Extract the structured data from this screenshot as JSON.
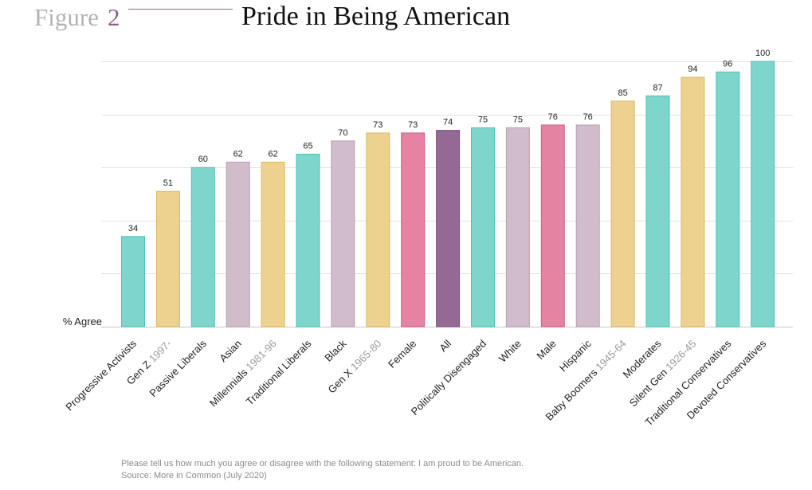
{
  "header": {
    "figure_word": "Figure",
    "figure_number": "2",
    "title": "Pride in Being American"
  },
  "chart_data": {
    "type": "bar",
    "ylabel": "% Agree",
    "ylim": [
      0,
      100
    ],
    "grid": true,
    "categories": [
      {
        "label": "Progressive Activists",
        "suffix": ""
      },
      {
        "label": "Gen Z",
        "suffix": "1997-"
      },
      {
        "label": "Passive Liberals",
        "suffix": ""
      },
      {
        "label": "Asian",
        "suffix": ""
      },
      {
        "label": "Millennials",
        "suffix": "1981-96"
      },
      {
        "label": "Traditional Liberals",
        "suffix": ""
      },
      {
        "label": "Black",
        "suffix": ""
      },
      {
        "label": "Gen X",
        "suffix": "1965-80"
      },
      {
        "label": "Female",
        "suffix": ""
      },
      {
        "label": "All",
        "suffix": ""
      },
      {
        "label": "Politically Disengaged",
        "suffix": ""
      },
      {
        "label": "White",
        "suffix": ""
      },
      {
        "label": "Male",
        "suffix": ""
      },
      {
        "label": "Hispanic",
        "suffix": ""
      },
      {
        "label": "Baby Boomers",
        "suffix": "1945-64"
      },
      {
        "label": "Moderates",
        "suffix": ""
      },
      {
        "label": "Silent Gen",
        "suffix": "1926-45"
      },
      {
        "label": "Traditional Conservatives",
        "suffix": ""
      },
      {
        "label": "Devoted Conservatives",
        "suffix": ""
      }
    ],
    "values": [
      34,
      51,
      60,
      62,
      62,
      65,
      70,
      73,
      73,
      74,
      75,
      75,
      76,
      76,
      85,
      87,
      94,
      96,
      100
    ],
    "data_labels": [
      "34",
      "51",
      "60",
      "62",
      "62",
      "65",
      "70",
      "73",
      "73",
      "74",
      "75",
      "75",
      "76",
      "76",
      "85",
      "87",
      "94",
      "96",
      "100"
    ],
    "bar_colors": [
      "#7dd5cb",
      "#edd18f",
      "#7dd5cb",
      "#d1bccc",
      "#edd18f",
      "#7dd5cb",
      "#d1bccc",
      "#edd18f",
      "#e682a2",
      "#946a95",
      "#7dd5cb",
      "#d1bccc",
      "#e682a2",
      "#d1bccc",
      "#edd18f",
      "#7dd5cb",
      "#edd18f",
      "#7dd5cb",
      "#7dd5cb"
    ],
    "bar_border_colors": [
      "#4fc2b5",
      "#dcb765",
      "#4fc2b5",
      "#b79fb2",
      "#dcb765",
      "#4fc2b5",
      "#b79fb2",
      "#dcb765",
      "#d45f86",
      "#7a4f7b",
      "#4fc2b5",
      "#b79fb2",
      "#d45f86",
      "#b79fb2",
      "#dcb765",
      "#4fc2b5",
      "#dcb765",
      "#4fc2b5",
      "#4fc2b5"
    ],
    "suffix_color": "#9a9a9a"
  },
  "footer": {
    "question": "Please tell us how much you agree or disagree with the following statement: I am proud to be American.",
    "source": "Source: More in Common (July 2020)"
  }
}
